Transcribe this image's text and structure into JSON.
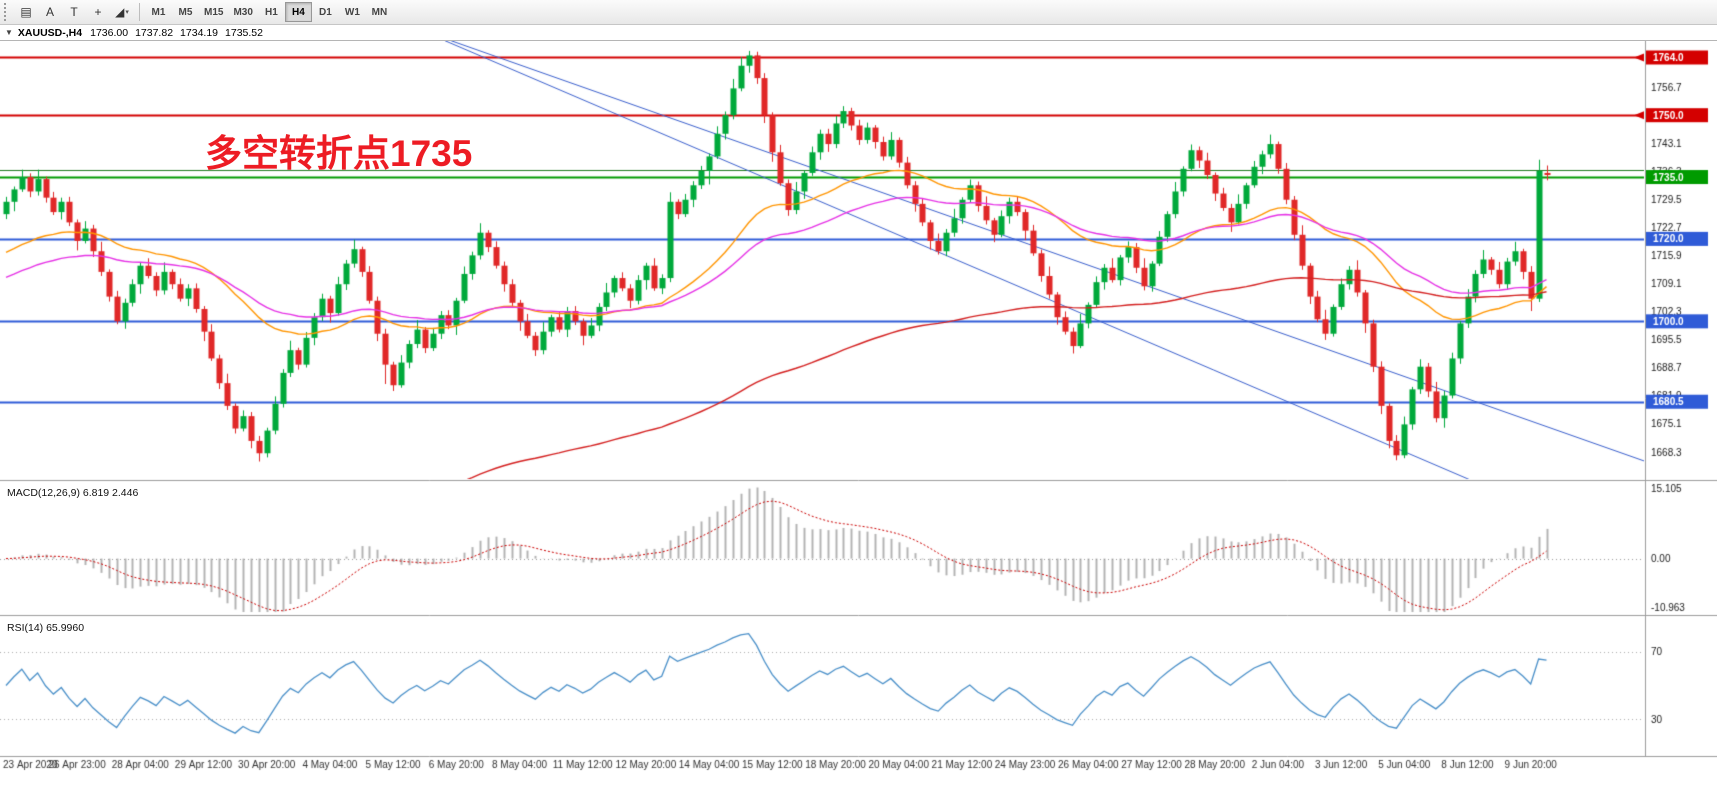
{
  "toolbar": {
    "tools": [
      {
        "name": "charts-list",
        "glyph": "▤"
      },
      {
        "name": "cursor",
        "glyph": "A"
      },
      {
        "name": "text-tool",
        "glyph": "T"
      },
      {
        "name": "crosshair",
        "glyph": "+"
      },
      {
        "name": "drawing-tools",
        "glyph": "◢"
      }
    ],
    "timeframes": [
      "M1",
      "M5",
      "M15",
      "M30",
      "H1",
      "H4",
      "D1",
      "W1",
      "MN"
    ],
    "active_timeframe": "H4"
  },
  "icons": {
    "dropdown": "▼",
    "caret": "▾"
  },
  "quote_bar": {
    "symbol": "XAUUSD-,H4",
    "open": "1736.00",
    "high": "1737.82",
    "low": "1734.19",
    "close": "1735.52"
  },
  "annotation": {
    "text": "多空转折点1735",
    "color": "#ed1c24"
  },
  "panels": {
    "macd": {
      "label": "MACD(12,26,9) 6.819 2.446",
      "axis": [
        "15.105",
        "0.00",
        "-10.963"
      ],
      "max": 15.105,
      "min": -10.963
    },
    "rsi": {
      "label": "RSI(14) 65.9960",
      "levels": [
        70,
        30
      ],
      "axis": [
        "70",
        "30"
      ]
    }
  },
  "price_axis": {
    "ticks": [
      1763.5,
      1756.7,
      1749.9,
      1743.1,
      1736.3,
      1729.5,
      1722.7,
      1715.9,
      1709.1,
      1702.3,
      1695.5,
      1688.7,
      1681.9,
      1675.1,
      1668.3
    ]
  },
  "hlines": [
    {
      "price": 1764.0,
      "color": "#d40000",
      "width": 2,
      "label": "1764.0",
      "arrow": true
    },
    {
      "price": 1750.0,
      "color": "#d40000",
      "width": 2,
      "label": "1750.0",
      "arrow": true
    },
    {
      "price": 1736.6,
      "color": "#1e7a1e",
      "width": 1,
      "label": null,
      "arrow": false
    },
    {
      "price": 1735.0,
      "color": "#009b00",
      "width": 2,
      "label": "1735.0",
      "arrow": false
    },
    {
      "price": 1720.0,
      "color": "#2f5bd7",
      "width": 2,
      "label": "1720.0",
      "arrow": false
    },
    {
      "price": 1700.0,
      "color": "#2f5bd7",
      "width": 2,
      "label": "1700.0",
      "arrow": false
    },
    {
      "price": 1680.5,
      "color": "#2f5bd7",
      "width": 2,
      "label": "1680.5",
      "arrow": false
    }
  ],
  "trendlines": [
    {
      "i1": 52,
      "p1": 1771,
      "i2": 186,
      "p2": 1661,
      "color": "#3a5fcd",
      "width": 1
    },
    {
      "i1": 52,
      "p1": 1771,
      "i2": 212,
      "p2": 1663,
      "color": "#3a5fcd",
      "width": 1
    }
  ],
  "moving_averages": [
    {
      "period": 34,
      "color": "#ff9500",
      "width": 1.4,
      "seed": 1716
    },
    {
      "period": 55,
      "color": "#e632e6",
      "width": 1.4,
      "seed": 1710
    },
    {
      "period": 144,
      "color": "#d42020",
      "width": 1.4,
      "seed": 1610
    }
  ],
  "colors": {
    "up": "#00a93b",
    "down": "#e02828",
    "histogram": "#b4b4b4",
    "signal": "#cc0000",
    "rsi_line": "#4a90c9",
    "axis_text": "#222",
    "separator": "#9c9c9c",
    "level_dotted": "#aaaaaa"
  },
  "time_axis": [
    "23 Apr 2020",
    "26 Apr 23:00",
    "28 Apr 04:00",
    "29 Apr 12:00",
    "30 Apr 20:00",
    "4 May 04:00",
    "5 May 12:00",
    "6 May 20:00",
    "8 May 04:00",
    "11 May 12:00",
    "12 May 20:00",
    "14 May 04:00",
    "15 May 12:00",
    "18 May 20:00",
    "20 May 04:00",
    "21 May 12:00",
    "24 May 23:00",
    "26 May 04:00",
    "27 May 12:00",
    "28 May 20:00",
    "2 Jun 04:00",
    "3 Jun 12:00",
    "5 Jun 04:00",
    "8 Jun 12:00",
    "9 Jun 20:00"
  ],
  "chart_data": {
    "type": "candlestick",
    "symbol": "XAUUSD-",
    "timeframe": "H4",
    "price_range": [
      1662,
      1768
    ],
    "current_bar": {
      "open": 1736.0,
      "high": 1737.82,
      "low": 1734.19,
      "close": 1735.52
    },
    "candles": [
      [
        1726.0,
        1730.2,
        1724.8,
        1729.0
      ],
      [
        1729.0,
        1732.7,
        1726.7,
        1732.0
      ],
      [
        1732.0,
        1736.8,
        1731.4,
        1735.0
      ],
      [
        1735.0,
        1735.9,
        1730.1,
        1731.5
      ],
      [
        1731.5,
        1736.8,
        1730.5,
        1734.5
      ],
      [
        1734.5,
        1735.1,
        1728.8,
        1730.0
      ],
      [
        1730.0,
        1731.4,
        1725.8,
        1726.5
      ],
      [
        1726.5,
        1730.0,
        1724.7,
        1729.0
      ],
      [
        1729.0,
        1730.2,
        1723.1,
        1724.0
      ],
      [
        1724.0,
        1724.7,
        1717.2,
        1719.5
      ],
      [
        1719.5,
        1724.3,
        1718.9,
        1722.5
      ],
      [
        1722.5,
        1723.4,
        1715.6,
        1717.0
      ],
      [
        1717.0,
        1719.3,
        1711.0,
        1712.0
      ],
      [
        1712.0,
        1712.6,
        1704.8,
        1706.0
      ],
      [
        1706.0,
        1707.4,
        1699.3,
        1700.0
      ],
      [
        1700.0,
        1705.5,
        1698.2,
        1704.5
      ],
      [
        1704.5,
        1710.2,
        1703.6,
        1709.0
      ],
      [
        1709.0,
        1714.2,
        1706.7,
        1713.5
      ],
      [
        1713.5,
        1715.3,
        1710.4,
        1711.0
      ],
      [
        1711.0,
        1711.9,
        1706.1,
        1707.5
      ],
      [
        1707.5,
        1714.3,
        1706.5,
        1712.0
      ],
      [
        1712.0,
        1712.6,
        1707.8,
        1709.0
      ],
      [
        1709.0,
        1710.4,
        1704.8,
        1705.5
      ],
      [
        1705.5,
        1709.0,
        1703.7,
        1708.0
      ],
      [
        1708.0,
        1709.2,
        1702.1,
        1703.0
      ],
      [
        1703.0,
        1703.7,
        1695.2,
        1697.5
      ],
      [
        1697.5,
        1699.3,
        1690.4,
        1691.0
      ],
      [
        1691.0,
        1691.9,
        1683.6,
        1685.0
      ],
      [
        1685.0,
        1687.3,
        1678.5,
        1679.5
      ],
      [
        1679.5,
        1680.1,
        1672.8,
        1674.0
      ],
      [
        1674.0,
        1678.4,
        1673.3,
        1677.0
      ],
      [
        1677.0,
        1678.0,
        1669.2,
        1671.0
      ],
      [
        1671.0,
        1672.2,
        1666.0,
        1668.0
      ],
      [
        1668.0,
        1674.2,
        1667.0,
        1673.5
      ],
      [
        1673.5,
        1681.8,
        1672.6,
        1680.0
      ],
      [
        1680.0,
        1688.4,
        1679.1,
        1687.5
      ],
      [
        1687.5,
        1695.3,
        1686.5,
        1693.0
      ],
      [
        1693.0,
        1693.6,
        1688.3,
        1689.5
      ],
      [
        1689.5,
        1697.4,
        1688.8,
        1696.0
      ],
      [
        1696.0,
        1702.0,
        1694.2,
        1701.0
      ],
      [
        1701.0,
        1706.7,
        1700.1,
        1705.5
      ],
      [
        1705.5,
        1706.2,
        1699.7,
        1702.0
      ],
      [
        1702.0,
        1710.8,
        1701.4,
        1709.0
      ],
      [
        1709.0,
        1714.9,
        1707.6,
        1714.0
      ],
      [
        1714.0,
        1719.8,
        1713.0,
        1717.5
      ],
      [
        1717.5,
        1718.1,
        1710.8,
        1712.0
      ],
      [
        1712.0,
        1713.4,
        1704.3,
        1705.0
      ],
      [
        1705.0,
        1706.0,
        1695.2,
        1697.0
      ],
      [
        1697.0,
        1698.2,
        1684.8,
        1689.5
      ],
      [
        1689.5,
        1690.2,
        1683.1,
        1684.5
      ],
      [
        1684.5,
        1691.8,
        1683.9,
        1690.0
      ],
      [
        1690.0,
        1695.4,
        1688.6,
        1694.5
      ],
      [
        1694.5,
        1700.3,
        1693.5,
        1698.0
      ],
      [
        1698.0,
        1698.6,
        1692.3,
        1693.5
      ],
      [
        1693.5,
        1698.4,
        1692.8,
        1697.0
      ],
      [
        1697.0,
        1702.5,
        1695.7,
        1701.5
      ],
      [
        1701.5,
        1702.7,
        1698.1,
        1699.0
      ],
      [
        1699.0,
        1705.7,
        1696.7,
        1705.0
      ],
      [
        1705.0,
        1713.3,
        1704.4,
        1711.5
      ],
      [
        1711.5,
        1716.9,
        1710.1,
        1716.0
      ],
      [
        1716.0,
        1723.8,
        1715.0,
        1721.5
      ],
      [
        1721.5,
        1722.1,
        1716.8,
        1718.0
      ],
      [
        1718.0,
        1719.4,
        1712.8,
        1713.5
      ],
      [
        1713.5,
        1714.5,
        1707.2,
        1709.0
      ],
      [
        1709.0,
        1710.2,
        1703.6,
        1704.5
      ],
      [
        1704.5,
        1705.2,
        1697.7,
        1700.0
      ],
      [
        1700.0,
        1701.8,
        1695.9,
        1696.5
      ],
      [
        1696.5,
        1697.4,
        1691.6,
        1693.0
      ],
      [
        1693.0,
        1699.8,
        1692.0,
        1697.5
      ],
      [
        1697.5,
        1701.6,
        1696.3,
        1701.0
      ],
      [
        1701.0,
        1702.4,
        1697.3,
        1698.0
      ],
      [
        1698.0,
        1703.5,
        1696.2,
        1702.5
      ],
      [
        1702.5,
        1703.7,
        1699.1,
        1700.0
      ],
      [
        1700.0,
        1700.7,
        1694.2,
        1696.5
      ],
      [
        1696.5,
        1700.8,
        1695.9,
        1699.0
      ],
      [
        1699.0,
        1704.4,
        1697.6,
        1703.5
      ],
      [
        1703.5,
        1709.3,
        1702.5,
        1707.0
      ],
      [
        1707.0,
        1711.1,
        1705.8,
        1710.5
      ],
      [
        1710.5,
        1711.9,
        1707.3,
        1708.0
      ],
      [
        1708.0,
        1709.0,
        1703.2,
        1705.0
      ],
      [
        1705.0,
        1711.2,
        1704.1,
        1710.0
      ],
      [
        1710.0,
        1714.2,
        1707.7,
        1713.5
      ],
      [
        1713.5,
        1715.3,
        1707.4,
        1708.0
      ],
      [
        1708.0,
        1711.4,
        1706.6,
        1710.5
      ],
      [
        1710.5,
        1731.3,
        1709.5,
        1729.0
      ],
      [
        1729.0,
        1729.6,
        1724.8,
        1726.0
      ],
      [
        1726.0,
        1730.9,
        1725.3,
        1729.5
      ],
      [
        1729.5,
        1734.0,
        1727.7,
        1733.0
      ],
      [
        1733.0,
        1737.7,
        1732.1,
        1736.5
      ],
      [
        1736.5,
        1740.7,
        1733.2,
        1740.0
      ],
      [
        1740.0,
        1747.3,
        1739.4,
        1745.5
      ],
      [
        1745.5,
        1750.9,
        1744.1,
        1750.0
      ],
      [
        1750.0,
        1758.8,
        1749.0,
        1756.5
      ],
      [
        1756.5,
        1764.1,
        1755.8,
        1762.0
      ],
      [
        1762.0,
        1765.6,
        1760.3,
        1764.5
      ],
      [
        1764.5,
        1765.4,
        1757.6,
        1759.0
      ],
      [
        1759.0,
        1760.2,
        1748.1,
        1750.0
      ],
      [
        1750.0,
        1750.7,
        1738.7,
        1741.0
      ],
      [
        1741.0,
        1742.8,
        1732.9,
        1733.5
      ],
      [
        1733.5,
        1734.4,
        1725.6,
        1727.0
      ],
      [
        1727.0,
        1733.8,
        1726.0,
        1731.5
      ],
      [
        1731.5,
        1736.6,
        1729.7,
        1736.0
      ],
      [
        1736.0,
        1742.4,
        1735.3,
        1741.0
      ],
      [
        1741.0,
        1746.5,
        1739.2,
        1745.5
      ],
      [
        1745.5,
        1746.7,
        1741.1,
        1743.0
      ],
      [
        1743.0,
        1749.8,
        1742.0,
        1748.0
      ],
      [
        1748.0,
        1752.2,
        1746.9,
        1751.0
      ],
      [
        1751.0,
        1751.8,
        1746.3,
        1747.5
      ],
      [
        1747.5,
        1748.9,
        1742.8,
        1744.0
      ],
      [
        1744.0,
        1748.2,
        1743.1,
        1747.0
      ],
      [
        1747.0,
        1747.6,
        1741.9,
        1743.5
      ],
      [
        1743.5,
        1744.8,
        1739.0,
        1740.0
      ],
      [
        1740.0,
        1745.9,
        1739.2,
        1744.0
      ],
      [
        1744.0,
        1744.6,
        1737.3,
        1738.5
      ],
      [
        1738.5,
        1739.9,
        1732.2,
        1733.0
      ],
      [
        1733.0,
        1734.0,
        1726.6,
        1728.5
      ],
      [
        1728.5,
        1729.7,
        1723.1,
        1724.0
      ],
      [
        1724.0,
        1724.6,
        1717.4,
        1719.5
      ],
      [
        1719.5,
        1721.3,
        1716.2,
        1717.0
      ],
      [
        1717.0,
        1722.4,
        1715.8,
        1721.5
      ],
      [
        1721.5,
        1727.3,
        1720.5,
        1725.0
      ],
      [
        1725.0,
        1730.1,
        1723.7,
        1729.5
      ],
      [
        1729.5,
        1734.4,
        1728.8,
        1733.0
      ],
      [
        1733.0,
        1733.9,
        1726.6,
        1728.0
      ],
      [
        1728.0,
        1730.3,
        1723.5,
        1724.5
      ],
      [
        1724.5,
        1725.1,
        1719.2,
        1721.0
      ],
      [
        1721.0,
        1726.9,
        1720.4,
        1725.5
      ],
      [
        1725.5,
        1730.0,
        1723.7,
        1729.0
      ],
      [
        1729.0,
        1730.2,
        1725.6,
        1726.5
      ],
      [
        1726.5,
        1727.2,
        1719.7,
        1722.0
      ],
      [
        1722.0,
        1723.4,
        1715.9,
        1716.5
      ],
      [
        1716.5,
        1717.4,
        1709.6,
        1711.0
      ],
      [
        1711.0,
        1713.3,
        1705.5,
        1706.5
      ],
      [
        1706.5,
        1707.1,
        1699.2,
        1701.0
      ],
      [
        1701.0,
        1702.4,
        1696.8,
        1697.5
      ],
      [
        1697.5,
        1698.5,
        1692.2,
        1694.0
      ],
      [
        1694.0,
        1701.8,
        1693.5,
        1699.5
      ],
      [
        1699.5,
        1704.6,
        1698.3,
        1704.0
      ],
      [
        1704.0,
        1710.9,
        1703.4,
        1709.5
      ],
      [
        1709.5,
        1713.9,
        1707.7,
        1713.0
      ],
      [
        1713.0,
        1715.3,
        1709.4,
        1710.0
      ],
      [
        1710.0,
        1716.1,
        1708.7,
        1715.5
      ],
      [
        1715.5,
        1719.4,
        1714.2,
        1718.0
      ],
      [
        1718.0,
        1719.0,
        1711.7,
        1713.0
      ],
      [
        1713.0,
        1715.3,
        1707.5,
        1708.5
      ],
      [
        1708.5,
        1714.6,
        1707.2,
        1714.0
      ],
      [
        1714.0,
        1721.9,
        1713.4,
        1720.5
      ],
      [
        1720.5,
        1726.7,
        1719.3,
        1726.0
      ],
      [
        1726.0,
        1733.8,
        1725.0,
        1731.5
      ],
      [
        1731.5,
        1737.6,
        1730.3,
        1737.0
      ],
      [
        1737.0,
        1742.9,
        1736.4,
        1741.5
      ],
      [
        1741.5,
        1742.4,
        1737.2,
        1739.0
      ],
      [
        1739.0,
        1740.9,
        1734.5,
        1735.5
      ],
      [
        1735.5,
        1736.1,
        1729.2,
        1731.0
      ],
      [
        1731.0,
        1732.4,
        1726.8,
        1727.5
      ],
      [
        1727.5,
        1728.5,
        1721.7,
        1724.0
      ],
      [
        1724.0,
        1730.8,
        1723.5,
        1728.5
      ],
      [
        1728.5,
        1733.6,
        1727.3,
        1733.0
      ],
      [
        1733.0,
        1738.9,
        1732.4,
        1737.5
      ],
      [
        1737.5,
        1741.4,
        1735.7,
        1740.5
      ],
      [
        1740.5,
        1745.3,
        1739.5,
        1743.0
      ],
      [
        1743.0,
        1743.6,
        1735.8,
        1737.0
      ],
      [
        1737.0,
        1738.4,
        1728.4,
        1729.5
      ],
      [
        1729.5,
        1730.4,
        1719.7,
        1721.0
      ],
      [
        1721.0,
        1723.3,
        1712.5,
        1713.5
      ],
      [
        1713.5,
        1714.1,
        1704.2,
        1706.0
      ],
      [
        1706.0,
        1707.4,
        1699.8,
        1700.5
      ],
      [
        1700.5,
        1702.8,
        1695.5,
        1697.0
      ],
      [
        1697.0,
        1704.1,
        1696.3,
        1703.5
      ],
      [
        1703.5,
        1710.4,
        1702.8,
        1709.0
      ],
      [
        1709.0,
        1713.4,
        1707.7,
        1712.5
      ],
      [
        1712.5,
        1714.8,
        1706.0,
        1707.0
      ],
      [
        1707.0,
        1707.6,
        1697.2,
        1699.5
      ],
      [
        1699.5,
        1700.4,
        1687.7,
        1689.0
      ],
      [
        1689.0,
        1690.3,
        1677.5,
        1679.5
      ],
      [
        1679.5,
        1680.1,
        1669.2,
        1671.0
      ],
      [
        1671.0,
        1672.4,
        1666.3,
        1667.5
      ],
      [
        1667.5,
        1676.9,
        1666.8,
        1675.0
      ],
      [
        1675.0,
        1684.1,
        1673.7,
        1683.5
      ],
      [
        1683.5,
        1690.8,
        1682.4,
        1689.0
      ],
      [
        1689.0,
        1689.9,
        1681.6,
        1683.0
      ],
      [
        1683.0,
        1685.3,
        1675.5,
        1676.5
      ],
      [
        1676.5,
        1683.1,
        1674.2,
        1682.0
      ],
      [
        1682.0,
        1692.4,
        1681.3,
        1691.0
      ],
      [
        1691.0,
        1700.1,
        1689.7,
        1699.5
      ],
      [
        1699.5,
        1707.8,
        1698.4,
        1706.0
      ],
      [
        1706.0,
        1712.4,
        1704.6,
        1711.5
      ],
      [
        1711.5,
        1717.3,
        1710.5,
        1715.0
      ],
      [
        1715.0,
        1715.6,
        1711.3,
        1712.5
      ],
      [
        1712.5,
        1714.4,
        1708.0,
        1709.0
      ],
      [
        1709.0,
        1715.4,
        1707.7,
        1714.5
      ],
      [
        1714.5,
        1719.3,
        1713.5,
        1717.0
      ],
      [
        1717.0,
        1717.6,
        1710.2,
        1712.0
      ],
      [
        1712.0,
        1713.4,
        1702.5,
        1705.5
      ],
      [
        1705.5,
        1739.2,
        1704.7,
        1736.5
      ],
      [
        1736.0,
        1737.8,
        1734.2,
        1735.5
      ]
    ]
  }
}
